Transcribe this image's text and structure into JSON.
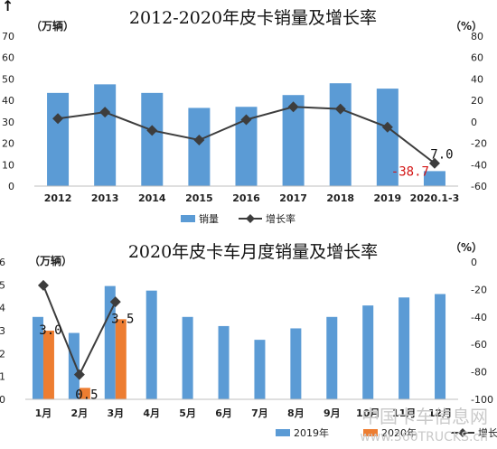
{
  "chart_data": [
    {
      "type": "bar",
      "title": "2012-2020年皮卡销量及增长率",
      "left_unit": "（万辆）",
      "right_unit": "（%）",
      "categories": [
        "2012",
        "2013",
        "2014",
        "2015",
        "2016",
        "2017",
        "2018",
        "2019",
        "2020.1-3"
      ],
      "ylim": [
        0,
        70
      ],
      "yticks": [
        "0",
        "10",
        "20",
        "30",
        "40",
        "50",
        "60",
        "70"
      ],
      "y2lim": [
        -60,
        80
      ],
      "y2ticks": [
        "-60",
        "-40",
        "-20",
        "0",
        "20",
        "40",
        "60",
        "80"
      ],
      "series": [
        {
          "name": "销量",
          "kind": "bar",
          "axis": "left",
          "color": "#5b9bd5",
          "values": [
            43.5,
            47.5,
            43.5,
            36.5,
            37,
            42.5,
            48,
            45.5,
            7.0
          ]
        },
        {
          "name": "增长率",
          "kind": "line",
          "axis": "right",
          "color": "#3d3d3d",
          "values": [
            3,
            9,
            -8,
            -17,
            2,
            14,
            12,
            -5,
            -38.7
          ]
        }
      ],
      "data_labels": [
        {
          "series": "增长率",
          "category": "2020.1-3",
          "text": "-38.7",
          "color": "#d31515"
        },
        {
          "series": "销量",
          "category": "2020.1-3",
          "text": "7.0",
          "color": "#111111"
        }
      ],
      "legend": {
        "position": "bottom-left",
        "items": [
          "销量",
          "增长率"
        ]
      }
    },
    {
      "type": "bar",
      "title": "2020年皮卡车月度销量及增长率",
      "left_unit": "（万辆）",
      "right_unit": "（%）",
      "categories": [
        "1月",
        "2月",
        "3月",
        "4月",
        "5月",
        "6月",
        "7月",
        "8月",
        "9月",
        "10月",
        "11月",
        "12月"
      ],
      "ylim": [
        0,
        6
      ],
      "yticks": [
        "0",
        "1",
        "2",
        "3",
        "4",
        "5",
        "6"
      ],
      "y2lim": [
        -100,
        0
      ],
      "y2ticks": [
        "-100",
        "-80",
        "-60",
        "-40",
        "-20",
        "0"
      ],
      "series": [
        {
          "name": "2019年",
          "kind": "bar",
          "axis": "left",
          "color": "#5b9bd5",
          "values": [
            3.6,
            2.9,
            4.95,
            4.75,
            3.6,
            3.2,
            2.6,
            3.1,
            3.6,
            4.1,
            4.45,
            4.6
          ]
        },
        {
          "name": "2020年",
          "kind": "bar",
          "axis": "left",
          "color": "#ed7d31",
          "values": [
            3.0,
            0.5,
            3.5,
            null,
            null,
            null,
            null,
            null,
            null,
            null,
            null,
            null
          ]
        },
        {
          "name": "增长率",
          "kind": "line",
          "axis": "right",
          "color": "#3d3d3d",
          "values": [
            -17,
            -82,
            -29,
            null,
            null,
            null,
            null,
            null,
            null,
            null,
            null,
            null
          ]
        }
      ],
      "data_labels": [
        {
          "series": "2020年",
          "category": "1月",
          "text": "3.0"
        },
        {
          "series": "2020年",
          "category": "2月",
          "text": "0.5"
        },
        {
          "series": "2020年",
          "category": "3月",
          "text": "3.5"
        }
      ],
      "legend": {
        "position": "bottom-right",
        "items": [
          "2019年",
          "2020年",
          "增长率"
        ]
      }
    }
  ],
  "watermark": {
    "line1": "中国卡车信息网",
    "line2": "www.360TRUCKS.cn"
  },
  "corner_mark": "↑"
}
